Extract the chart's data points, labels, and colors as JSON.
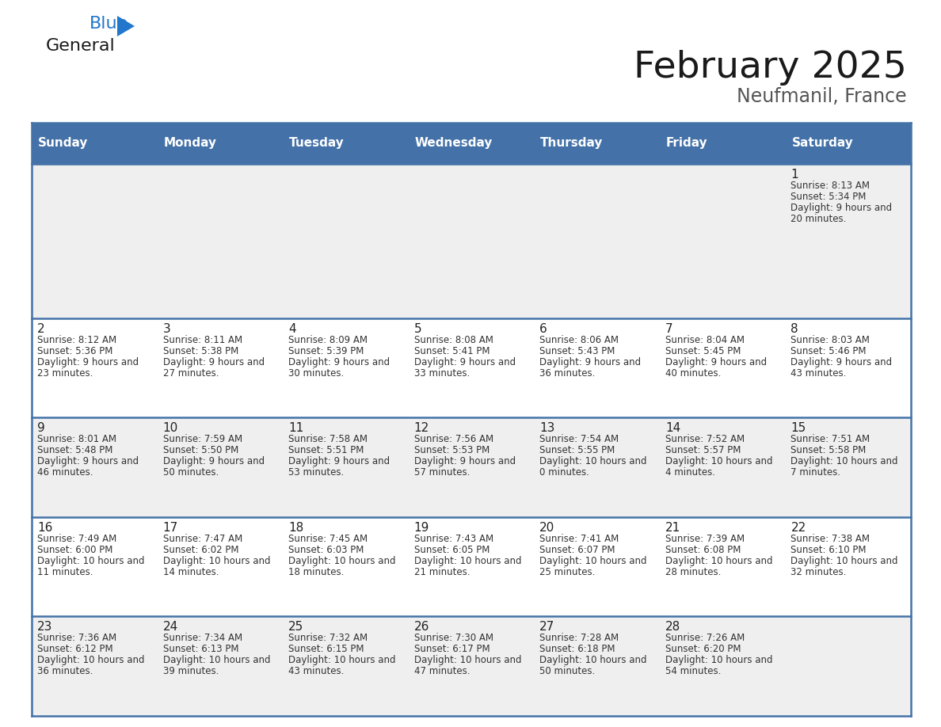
{
  "title": "February 2025",
  "subtitle": "Neufmanil, France",
  "days_of_week": [
    "Sunday",
    "Monday",
    "Tuesday",
    "Wednesday",
    "Thursday",
    "Friday",
    "Saturday"
  ],
  "header_bg": "#4472a8",
  "header_text": "#ffffff",
  "row_bg_odd": "#efefef",
  "row_bg_even": "#ffffff",
  "border_color": "#4472a8",
  "day_number_color": "#222222",
  "cell_text_color": "#333333",
  "title_color": "#1a1a1a",
  "subtitle_color": "#555555",
  "logo_general_color": "#1a1a1a",
  "logo_blue_color": "#2277cc",
  "calendar_data": [
    {
      "day": 1,
      "col": 6,
      "row": 0,
      "sunrise": "8:13 AM",
      "sunset": "5:34 PM",
      "daylight": "9 hours and 20 minutes."
    },
    {
      "day": 2,
      "col": 0,
      "row": 1,
      "sunrise": "8:12 AM",
      "sunset": "5:36 PM",
      "daylight": "9 hours and 23 minutes."
    },
    {
      "day": 3,
      "col": 1,
      "row": 1,
      "sunrise": "8:11 AM",
      "sunset": "5:38 PM",
      "daylight": "9 hours and 27 minutes."
    },
    {
      "day": 4,
      "col": 2,
      "row": 1,
      "sunrise": "8:09 AM",
      "sunset": "5:39 PM",
      "daylight": "9 hours and 30 minutes."
    },
    {
      "day": 5,
      "col": 3,
      "row": 1,
      "sunrise": "8:08 AM",
      "sunset": "5:41 PM",
      "daylight": "9 hours and 33 minutes."
    },
    {
      "day": 6,
      "col": 4,
      "row": 1,
      "sunrise": "8:06 AM",
      "sunset": "5:43 PM",
      "daylight": "9 hours and 36 minutes."
    },
    {
      "day": 7,
      "col": 5,
      "row": 1,
      "sunrise": "8:04 AM",
      "sunset": "5:45 PM",
      "daylight": "9 hours and 40 minutes."
    },
    {
      "day": 8,
      "col": 6,
      "row": 1,
      "sunrise": "8:03 AM",
      "sunset": "5:46 PM",
      "daylight": "9 hours and 43 minutes."
    },
    {
      "day": 9,
      "col": 0,
      "row": 2,
      "sunrise": "8:01 AM",
      "sunset": "5:48 PM",
      "daylight": "9 hours and 46 minutes."
    },
    {
      "day": 10,
      "col": 1,
      "row": 2,
      "sunrise": "7:59 AM",
      "sunset": "5:50 PM",
      "daylight": "9 hours and 50 minutes."
    },
    {
      "day": 11,
      "col": 2,
      "row": 2,
      "sunrise": "7:58 AM",
      "sunset": "5:51 PM",
      "daylight": "9 hours and 53 minutes."
    },
    {
      "day": 12,
      "col": 3,
      "row": 2,
      "sunrise": "7:56 AM",
      "sunset": "5:53 PM",
      "daylight": "9 hours and 57 minutes."
    },
    {
      "day": 13,
      "col": 4,
      "row": 2,
      "sunrise": "7:54 AM",
      "sunset": "5:55 PM",
      "daylight": "10 hours and 0 minutes."
    },
    {
      "day": 14,
      "col": 5,
      "row": 2,
      "sunrise": "7:52 AM",
      "sunset": "5:57 PM",
      "daylight": "10 hours and 4 minutes."
    },
    {
      "day": 15,
      "col": 6,
      "row": 2,
      "sunrise": "7:51 AM",
      "sunset": "5:58 PM",
      "daylight": "10 hours and 7 minutes."
    },
    {
      "day": 16,
      "col": 0,
      "row": 3,
      "sunrise": "7:49 AM",
      "sunset": "6:00 PM",
      "daylight": "10 hours and 11 minutes."
    },
    {
      "day": 17,
      "col": 1,
      "row": 3,
      "sunrise": "7:47 AM",
      "sunset": "6:02 PM",
      "daylight": "10 hours and 14 minutes."
    },
    {
      "day": 18,
      "col": 2,
      "row": 3,
      "sunrise": "7:45 AM",
      "sunset": "6:03 PM",
      "daylight": "10 hours and 18 minutes."
    },
    {
      "day": 19,
      "col": 3,
      "row": 3,
      "sunrise": "7:43 AM",
      "sunset": "6:05 PM",
      "daylight": "10 hours and 21 minutes."
    },
    {
      "day": 20,
      "col": 4,
      "row": 3,
      "sunrise": "7:41 AM",
      "sunset": "6:07 PM",
      "daylight": "10 hours and 25 minutes."
    },
    {
      "day": 21,
      "col": 5,
      "row": 3,
      "sunrise": "7:39 AM",
      "sunset": "6:08 PM",
      "daylight": "10 hours and 28 minutes."
    },
    {
      "day": 22,
      "col": 6,
      "row": 3,
      "sunrise": "7:38 AM",
      "sunset": "6:10 PM",
      "daylight": "10 hours and 32 minutes."
    },
    {
      "day": 23,
      "col": 0,
      "row": 4,
      "sunrise": "7:36 AM",
      "sunset": "6:12 PM",
      "daylight": "10 hours and 36 minutes."
    },
    {
      "day": 24,
      "col": 1,
      "row": 4,
      "sunrise": "7:34 AM",
      "sunset": "6:13 PM",
      "daylight": "10 hours and 39 minutes."
    },
    {
      "day": 25,
      "col": 2,
      "row": 4,
      "sunrise": "7:32 AM",
      "sunset": "6:15 PM",
      "daylight": "10 hours and 43 minutes."
    },
    {
      "day": 26,
      "col": 3,
      "row": 4,
      "sunrise": "7:30 AM",
      "sunset": "6:17 PM",
      "daylight": "10 hours and 47 minutes."
    },
    {
      "day": 27,
      "col": 4,
      "row": 4,
      "sunrise": "7:28 AM",
      "sunset": "6:18 PM",
      "daylight": "10 hours and 50 minutes."
    },
    {
      "day": 28,
      "col": 5,
      "row": 4,
      "sunrise": "7:26 AM",
      "sunset": "6:20 PM",
      "daylight": "10 hours and 54 minutes."
    }
  ]
}
